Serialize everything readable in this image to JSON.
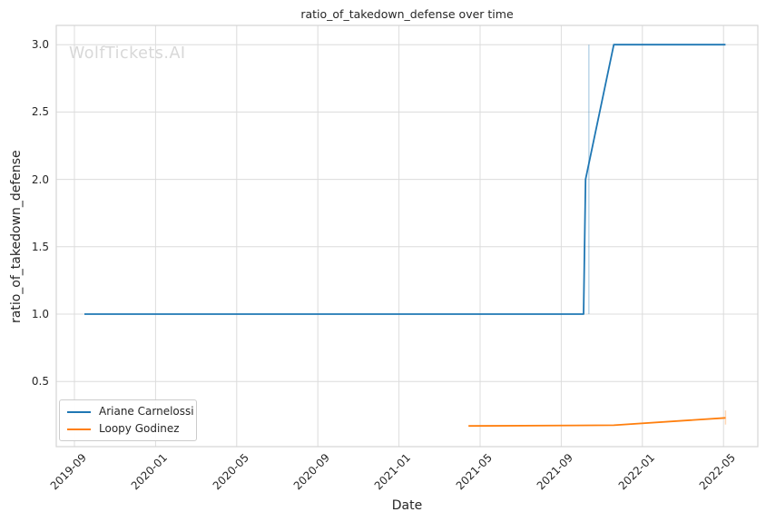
{
  "watermark": "WolfTickets.AI",
  "chart_data": {
    "type": "line",
    "title": "ratio_of_takedown_defense over time",
    "xlabel": "Date",
    "ylabel": "ratio_of_takedown_defense",
    "x_tick_labels": [
      "2019-09",
      "2020-01",
      "2020-05",
      "2020-09",
      "2021-01",
      "2021-05",
      "2021-09",
      "2022-01",
      "2022-05"
    ],
    "y_ticks": [
      0.5,
      1.0,
      1.5,
      2.0,
      2.5,
      3.0
    ],
    "ylim": [
      0.02,
      3.14
    ],
    "grid": true,
    "legend_position": "lower-left",
    "series": [
      {
        "name": "Ariane Carnelossi",
        "color": "#1f77b4",
        "points": [
          {
            "date": "2019-09-16",
            "value": 1.0
          },
          {
            "date": "2021-10-04",
            "value": 1.0
          },
          {
            "date": "2021-10-07",
            "value": 2.0
          },
          {
            "date": "2021-11-19",
            "value": 3.0
          },
          {
            "date": "2022-05-04",
            "value": 3.0
          }
        ],
        "error_bar": {
          "date": "2021-10-12",
          "lo": 1.0,
          "hi": 3.0
        }
      },
      {
        "name": "Loopy Godinez",
        "color": "#ff7f0e",
        "points": [
          {
            "date": "2021-04-14",
            "value": 0.17
          },
          {
            "date": "2021-11-19",
            "value": 0.175
          },
          {
            "date": "2022-05-04",
            "value": 0.23
          }
        ],
        "error_bar": {
          "date": "2022-05-04",
          "lo": 0.18,
          "hi": 0.285
        }
      }
    ],
    "colors": {
      "grid": "#dcdcdc",
      "border": "#d4d4d4",
      "text": "#262626",
      "watermark": "#d8d8d8"
    }
  }
}
